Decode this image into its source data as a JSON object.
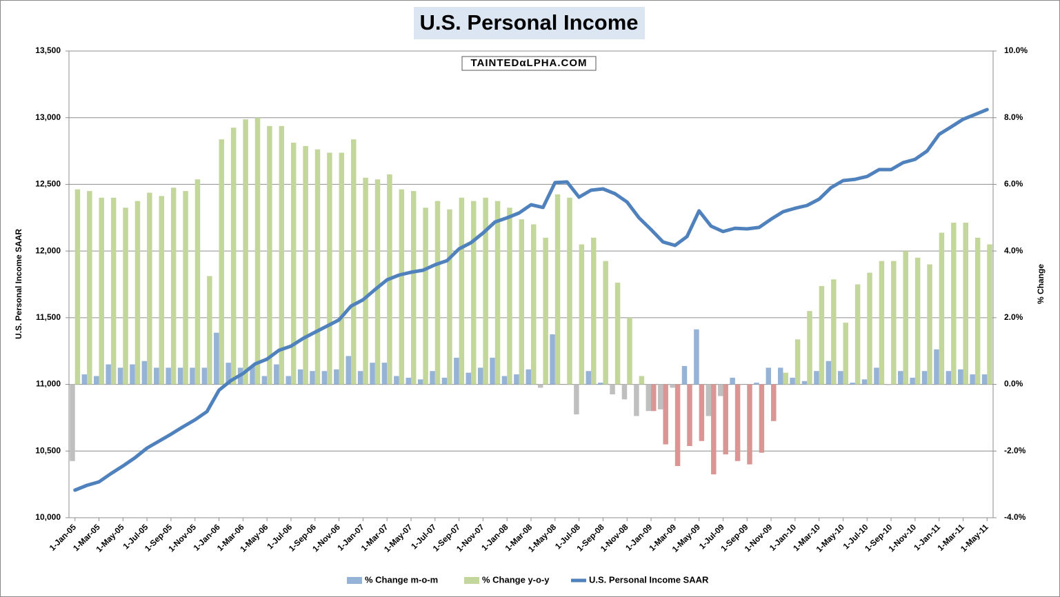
{
  "chart_data": {
    "type": "combo",
    "title": "U.S. Personal Income",
    "watermark": "TAINTEDαLPHA.COM",
    "y_label": "U.S. Personal Income SAAR",
    "y2_label": "% Change",
    "categories": [
      "1-Jan-05",
      null,
      "1-Mar-05",
      null,
      "1-May-05",
      null,
      "1-Jul-05",
      null,
      "1-Sep-05",
      null,
      "1-Nov-05",
      null,
      "1-Jan-06",
      null,
      "1-Mar-06",
      null,
      "1-May-06",
      null,
      "1-Jul-06",
      null,
      "1-Sep-06",
      null,
      "1-Nov-06",
      null,
      "1-Jan-07",
      null,
      "1-Mar-07",
      null,
      "1-May-07",
      null,
      "1-Jul-07",
      null,
      "1-Sep-07",
      null,
      "1-Nov-07",
      null,
      "1-Jan-08",
      null,
      "1-Mar-08",
      null,
      "1-May-08",
      null,
      "1-Jul-08",
      null,
      "1-Sep-08",
      null,
      "1-Nov-08",
      null,
      "1-Jan-09",
      null,
      "1-Mar-09",
      null,
      "1-May-09",
      null,
      "1-Jul-09",
      null,
      "1-Sep-09",
      null,
      "1-Nov-09",
      null,
      "1-Jan-10",
      null,
      "1-Mar-10",
      null,
      "1-May-10",
      null,
      "1-Jul-10",
      null,
      "1-Sep-10",
      null,
      "1-Nov-10",
      null,
      "1-Jan-11",
      null,
      "1-Mar-11",
      null,
      "1-May-11"
    ],
    "series": [
      {
        "name": "% Change m-o-m",
        "type": "bar",
        "axis": "y2",
        "color": "#95b3d7",
        "negative_color": "#bfbfbf",
        "values": [
          -2.3,
          0.3,
          0.25,
          0.6,
          0.5,
          0.6,
          0.7,
          0.5,
          0.5,
          0.5,
          0.5,
          0.5,
          1.55,
          0.65,
          0.5,
          0.55,
          0.25,
          0.6,
          0.25,
          0.45,
          0.4,
          0.4,
          0.45,
          0.85,
          0.4,
          0.65,
          0.65,
          0.25,
          0.2,
          0.15,
          0.4,
          0.2,
          0.8,
          0.35,
          0.5,
          0.8,
          0.25,
          0.3,
          0.45,
          -0.1,
          1.5,
          0,
          -0.9,
          0.4,
          0.05,
          -0.3,
          -0.45,
          -0.95,
          -0.8,
          -0.75,
          -0.1,
          0.55,
          1.65,
          -0.95,
          -0.35,
          0.2,
          0,
          0.05,
          0.5,
          0.5,
          0.2,
          0.1,
          0.4,
          0.7,
          0.4,
          0.05,
          0.15,
          0.5,
          -0.02,
          0.4,
          0.2,
          0.4,
          1.05,
          0.4,
          0.45,
          0.3,
          0.3
        ]
      },
      {
        "name": "% Change y-o-y",
        "type": "bar",
        "axis": "y2",
        "color": "#c3d69b",
        "negative_color": "#d99694",
        "values": [
          5.85,
          5.8,
          5.6,
          5.6,
          5.3,
          5.5,
          5.75,
          5.65,
          5.9,
          5.8,
          6.15,
          3.25,
          7.35,
          7.7,
          7.95,
          8.0,
          7.75,
          7.75,
          7.25,
          7.15,
          7.05,
          6.95,
          6.95,
          7.35,
          6.2,
          6.15,
          6.3,
          5.85,
          5.8,
          5.3,
          5.5,
          5.25,
          5.6,
          5.5,
          5.6,
          5.5,
          5.3,
          4.95,
          4.8,
          4.4,
          5.7,
          5.6,
          4.2,
          4.4,
          3.7,
          3.05,
          2.0,
          0.25,
          -0.8,
          -1.8,
          -2.45,
          -1.85,
          -1.7,
          -2.7,
          -2.1,
          -2.3,
          -2.4,
          -2.05,
          -1.1,
          0.35,
          1.35,
          2.2,
          2.95,
          3.15,
          1.85,
          3.0,
          3.35,
          3.7,
          3.7,
          4.0,
          3.8,
          3.6,
          4.55,
          4.85,
          4.85,
          4.4,
          4.2
        ]
      },
      {
        "name": "U.S. Personal Income SAAR",
        "type": "line",
        "axis": "y",
        "color": "#4f81bd",
        "values": [
          10207,
          10243,
          10269,
          10331,
          10388,
          10450,
          10522,
          10574,
          10626,
          10682,
          10734,
          10796,
          10956,
          11029,
          11081,
          11153,
          11189,
          11256,
          11287,
          11344,
          11391,
          11437,
          11484,
          11587,
          11634,
          11711,
          11784,
          11820,
          11841,
          11856,
          11897,
          11928,
          12016,
          12063,
          12135,
          12218,
          12249,
          12285,
          12347,
          12327,
          12513,
          12518,
          12404,
          12456,
          12466,
          12430,
          12368,
          12249,
          12161,
          12068,
          12042,
          12109,
          12301,
          12187,
          12146,
          12171,
          12166,
          12177,
          12239,
          12295,
          12321,
          12342,
          12389,
          12476,
          12528,
          12538,
          12559,
          12611,
          12611,
          12663,
          12688,
          12750,
          12875,
          12931,
          12988,
          13024,
          13061
        ]
      }
    ],
    "ylim": [
      10000,
      13500
    ],
    "yticks": [
      {
        "value": 10000,
        "label": "10,000"
      },
      {
        "value": 10500,
        "label": "10,500"
      },
      {
        "value": 11000,
        "label": "11,000"
      },
      {
        "value": 11500,
        "label": "11,500"
      },
      {
        "value": 12000,
        "label": "12,000"
      },
      {
        "value": 12500,
        "label": "12,500"
      },
      {
        "value": 13000,
        "label": "13,000"
      },
      {
        "value": 13500,
        "label": "13,500"
      }
    ],
    "y2lim": [
      -4,
      10
    ],
    "y2ticks": [
      {
        "value": -4,
        "label": "-4.0%"
      },
      {
        "value": -2,
        "label": "-2.0%"
      },
      {
        "value": 0,
        "label": "0.0%"
      },
      {
        "value": 2,
        "label": "2.0%"
      },
      {
        "value": 4,
        "label": "4.0%"
      },
      {
        "value": 6,
        "label": "6.0%"
      },
      {
        "value": 8,
        "label": "8.0%"
      },
      {
        "value": 10,
        "label": "10.0%"
      }
    ],
    "grid": true,
    "legend": "bottom"
  }
}
